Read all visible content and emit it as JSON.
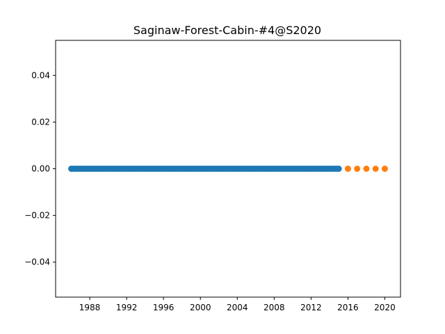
{
  "chart_data": {
    "type": "scatter",
    "title": "Saginaw-Forest-Cabin-#4@S2020",
    "xlabel": "",
    "ylabel": "",
    "xlim": [
      1984.3,
      2021.7
    ],
    "ylim": [
      -0.055,
      0.055
    ],
    "xticks": [
      1988,
      1992,
      1996,
      2000,
      2004,
      2008,
      2012,
      2016,
      2020
    ],
    "yticks": [
      0.04,
      0.02,
      0.0,
      -0.02,
      -0.04
    ],
    "ytick_labels": [
      "0.04",
      "0.02",
      "0.00",
      "−0.02",
      "−0.04"
    ],
    "grid": false,
    "series": [
      {
        "color": "#1f77b4",
        "x_start": 1986.0,
        "x_end": 2015.0,
        "x_step": 0.25,
        "y": 0.0
      },
      {
        "color": "#ff7f0e",
        "x": [
          2016,
          2017,
          2018,
          2019,
          2020
        ],
        "y": [
          0,
          0,
          0,
          0,
          0
        ]
      }
    ]
  }
}
